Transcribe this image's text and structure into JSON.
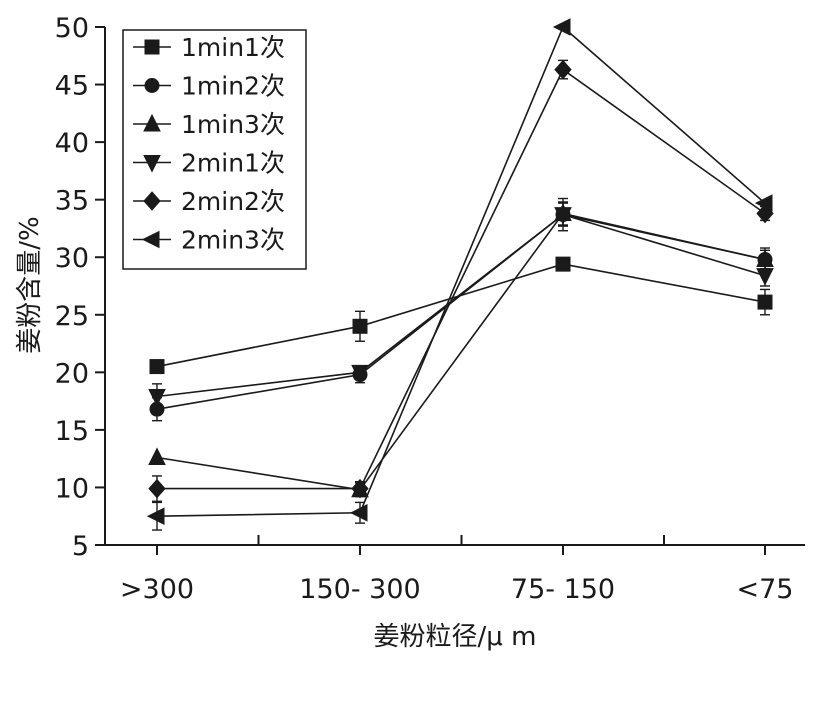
{
  "chart_data": {
    "type": "line",
    "xlabel": "姜粉粒径/μ m",
    "ylabel": "姜粉含量/%",
    "categories": [
      ">300",
      "150- 300",
      "75- 150",
      "<75"
    ],
    "ylim": [
      5,
      50
    ],
    "yticks": [
      5,
      10,
      15,
      20,
      25,
      30,
      35,
      40,
      45,
      50
    ],
    "grid": false,
    "legend_position": "top-left",
    "line_color": "#1a1a1a",
    "series": [
      {
        "name": "1min1次",
        "marker": "square",
        "values": [
          20.5,
          24.0,
          29.4,
          26.1
        ],
        "errors": [
          0.0,
          1.3,
          0.5,
          1.1
        ]
      },
      {
        "name": "1min2次",
        "marker": "circle",
        "values": [
          16.8,
          19.8,
          33.7,
          29.8
        ],
        "errors": [
          1.0,
          0.7,
          1.4,
          1.0
        ]
      },
      {
        "name": "1min3次",
        "marker": "triangle-up",
        "values": [
          12.6,
          9.8,
          33.8,
          29.8
        ],
        "errors": [
          0.0,
          0.6,
          1.0,
          0.8
        ]
      },
      {
        "name": "2min1次",
        "marker": "triangle-down",
        "values": [
          17.9,
          20.0,
          33.7,
          28.4
        ],
        "errors": [
          1.1,
          0.5,
          1.0,
          0.9
        ]
      },
      {
        "name": "2min2次",
        "marker": "diamond",
        "values": [
          9.9,
          9.9,
          46.3,
          33.8
        ],
        "errors": [
          1.1,
          0.6,
          0.8,
          0.6
        ]
      },
      {
        "name": "2min3次",
        "marker": "triangle-left",
        "values": [
          7.5,
          7.8,
          50.0,
          34.7
        ],
        "errors": [
          1.2,
          0.9,
          0.0,
          0.0
        ]
      }
    ]
  }
}
